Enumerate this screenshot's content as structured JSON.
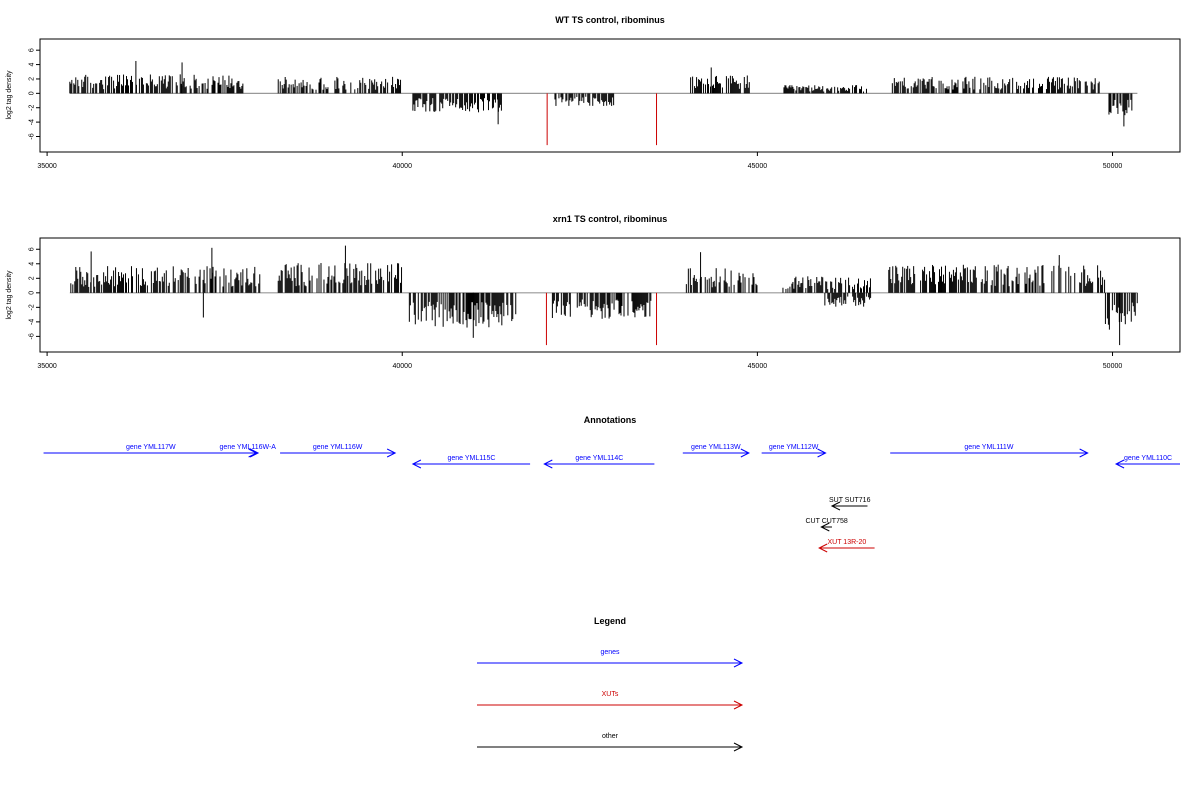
{
  "chart_data": [
    {
      "type": "bar",
      "title": "WT TS control, ribominus",
      "ylabel": "log2 tag density",
      "xlim": [
        34900,
        50950
      ],
      "ylim": [
        -7.6,
        7.0
      ],
      "x_ticks": [
        35000,
        40000,
        45000,
        50000
      ],
      "y_ticks": [
        -6,
        -4,
        -2,
        0,
        2,
        4,
        6
      ],
      "grid": false,
      "baseline_color": "#999999",
      "bar_color": "#000000",
      "highlight_color": "#cc0000",
      "positive_regions": [
        {
          "from": 35320,
          "to": 37760,
          "amp": 2.3
        },
        {
          "from": 38240,
          "to": 39990,
          "amp": 2.0
        },
        {
          "from": 44060,
          "to": 44900,
          "amp": 2.2
        },
        {
          "from": 45360,
          "to": 46550,
          "amp": 1.0
        },
        {
          "from": 46900,
          "to": 49900,
          "amp": 2.0
        }
      ],
      "negative_regions": [
        {
          "from": 40150,
          "to": 41400,
          "amp": 2.2
        },
        {
          "from": 42150,
          "to": 43000,
          "amp": 1.5
        },
        {
          "from": 49950,
          "to": 50280,
          "amp": 2.6
        }
      ],
      "spikes": [
        {
          "x": 36250,
          "y": 4.5
        },
        {
          "x": 36900,
          "y": 4.3
        },
        {
          "x": 41350,
          "y": -4.3
        },
        {
          "x": 44350,
          "y": 3.6
        },
        {
          "x": 50160,
          "y": -4.6
        }
      ],
      "highlights": [
        {
          "x": 42040,
          "y": -7.2
        },
        {
          "x": 43580,
          "y": -7.2
        }
      ]
    },
    {
      "type": "bar",
      "title": "xrn1 TS control, ribominus",
      "ylabel": "log2 tag density",
      "xlim": [
        34900,
        50950
      ],
      "ylim": [
        -7.6,
        7.0
      ],
      "x_ticks": [
        35000,
        40000,
        45000,
        50000
      ],
      "y_ticks": [
        -6,
        -4,
        -2,
        0,
        2,
        4,
        6
      ],
      "grid": false,
      "baseline_color": "#999999",
      "bar_color": "#000000",
      "highlight_color": "#cc0000",
      "positive_regions": [
        {
          "from": 35320,
          "to": 38000,
          "amp": 3.2
        },
        {
          "from": 38240,
          "to": 40020,
          "amp": 3.6
        },
        {
          "from": 44000,
          "to": 45000,
          "amp": 3.0
        },
        {
          "from": 45360,
          "to": 46600,
          "amp": 2.0
        },
        {
          "from": 46850,
          "to": 49900,
          "amp": 3.4
        }
      ],
      "negative_regions": [
        {
          "from": 40100,
          "to": 41600,
          "amp": 4.0
        },
        {
          "from": 42100,
          "to": 43500,
          "amp": 3.0
        },
        {
          "from": 45950,
          "to": 46600,
          "amp": 1.6
        },
        {
          "from": 49900,
          "to": 50380,
          "amp": 4.5
        }
      ],
      "spikes": [
        {
          "x": 35620,
          "y": 5.7
        },
        {
          "x": 37320,
          "y": 6.2
        },
        {
          "x": 39200,
          "y": 6.5
        },
        {
          "x": 44200,
          "y": 5.6
        },
        {
          "x": 49250,
          "y": 5.2
        },
        {
          "x": 37200,
          "y": -3.4
        },
        {
          "x": 41000,
          "y": -6.2
        },
        {
          "x": 50100,
          "y": -7.2
        }
      ],
      "highlights": [
        {
          "x": 42030,
          "y": -7.2
        },
        {
          "x": 43580,
          "y": -7.2
        }
      ]
    }
  ],
  "annotations": {
    "title": "Annotations",
    "xlim": [
      34900,
      50950
    ],
    "features": [
      {
        "label": "gene YML117W",
        "start": 34950,
        "end": 37970,
        "strand": "+",
        "row": 0,
        "color": "#0000ff"
      },
      {
        "label": "gene YML116W-A",
        "start": 37700,
        "end": 37950,
        "strand": "+",
        "row": 0,
        "color": "#0000ff"
      },
      {
        "label": "gene YML116W",
        "start": 38280,
        "end": 39900,
        "strand": "+",
        "row": 0,
        "color": "#0000ff"
      },
      {
        "label": "gene YML115C",
        "start": 40150,
        "end": 41800,
        "strand": "-",
        "row": 1,
        "color": "#0000ff"
      },
      {
        "label": "gene YML114C",
        "start": 42000,
        "end": 43550,
        "strand": "-",
        "row": 1,
        "color": "#0000ff"
      },
      {
        "label": "gene YML113W",
        "start": 43950,
        "end": 44880,
        "strand": "+",
        "row": 0,
        "color": "#0000ff"
      },
      {
        "label": "gene YML112W",
        "start": 45060,
        "end": 45960,
        "strand": "+",
        "row": 0,
        "color": "#0000ff"
      },
      {
        "label": "gene YML111W",
        "start": 46870,
        "end": 49650,
        "strand": "+",
        "row": 0,
        "color": "#0000ff"
      },
      {
        "label": "gene YML110C",
        "start": 50050,
        "end": 50950,
        "strand": "-",
        "row": 1,
        "color": "#0000ff"
      },
      {
        "label": "SUT SUT716",
        "start": 46050,
        "end": 46550,
        "strand": "-",
        "row": 2,
        "color": "#000000"
      },
      {
        "label": "CUT CUT758",
        "start": 45900,
        "end": 46050,
        "strand": "-",
        "row": 3,
        "color": "#000000"
      },
      {
        "label": "XUT 13R-20",
        "start": 45870,
        "end": 46650,
        "strand": "-",
        "row": 4,
        "color": "#cc0000"
      }
    ]
  },
  "legend": {
    "title": "Legend",
    "items": [
      {
        "label": "genes",
        "color": "#0000ff"
      },
      {
        "label": "XUTs",
        "color": "#cc0000"
      },
      {
        "label": "other",
        "color": "#000000"
      }
    ]
  }
}
